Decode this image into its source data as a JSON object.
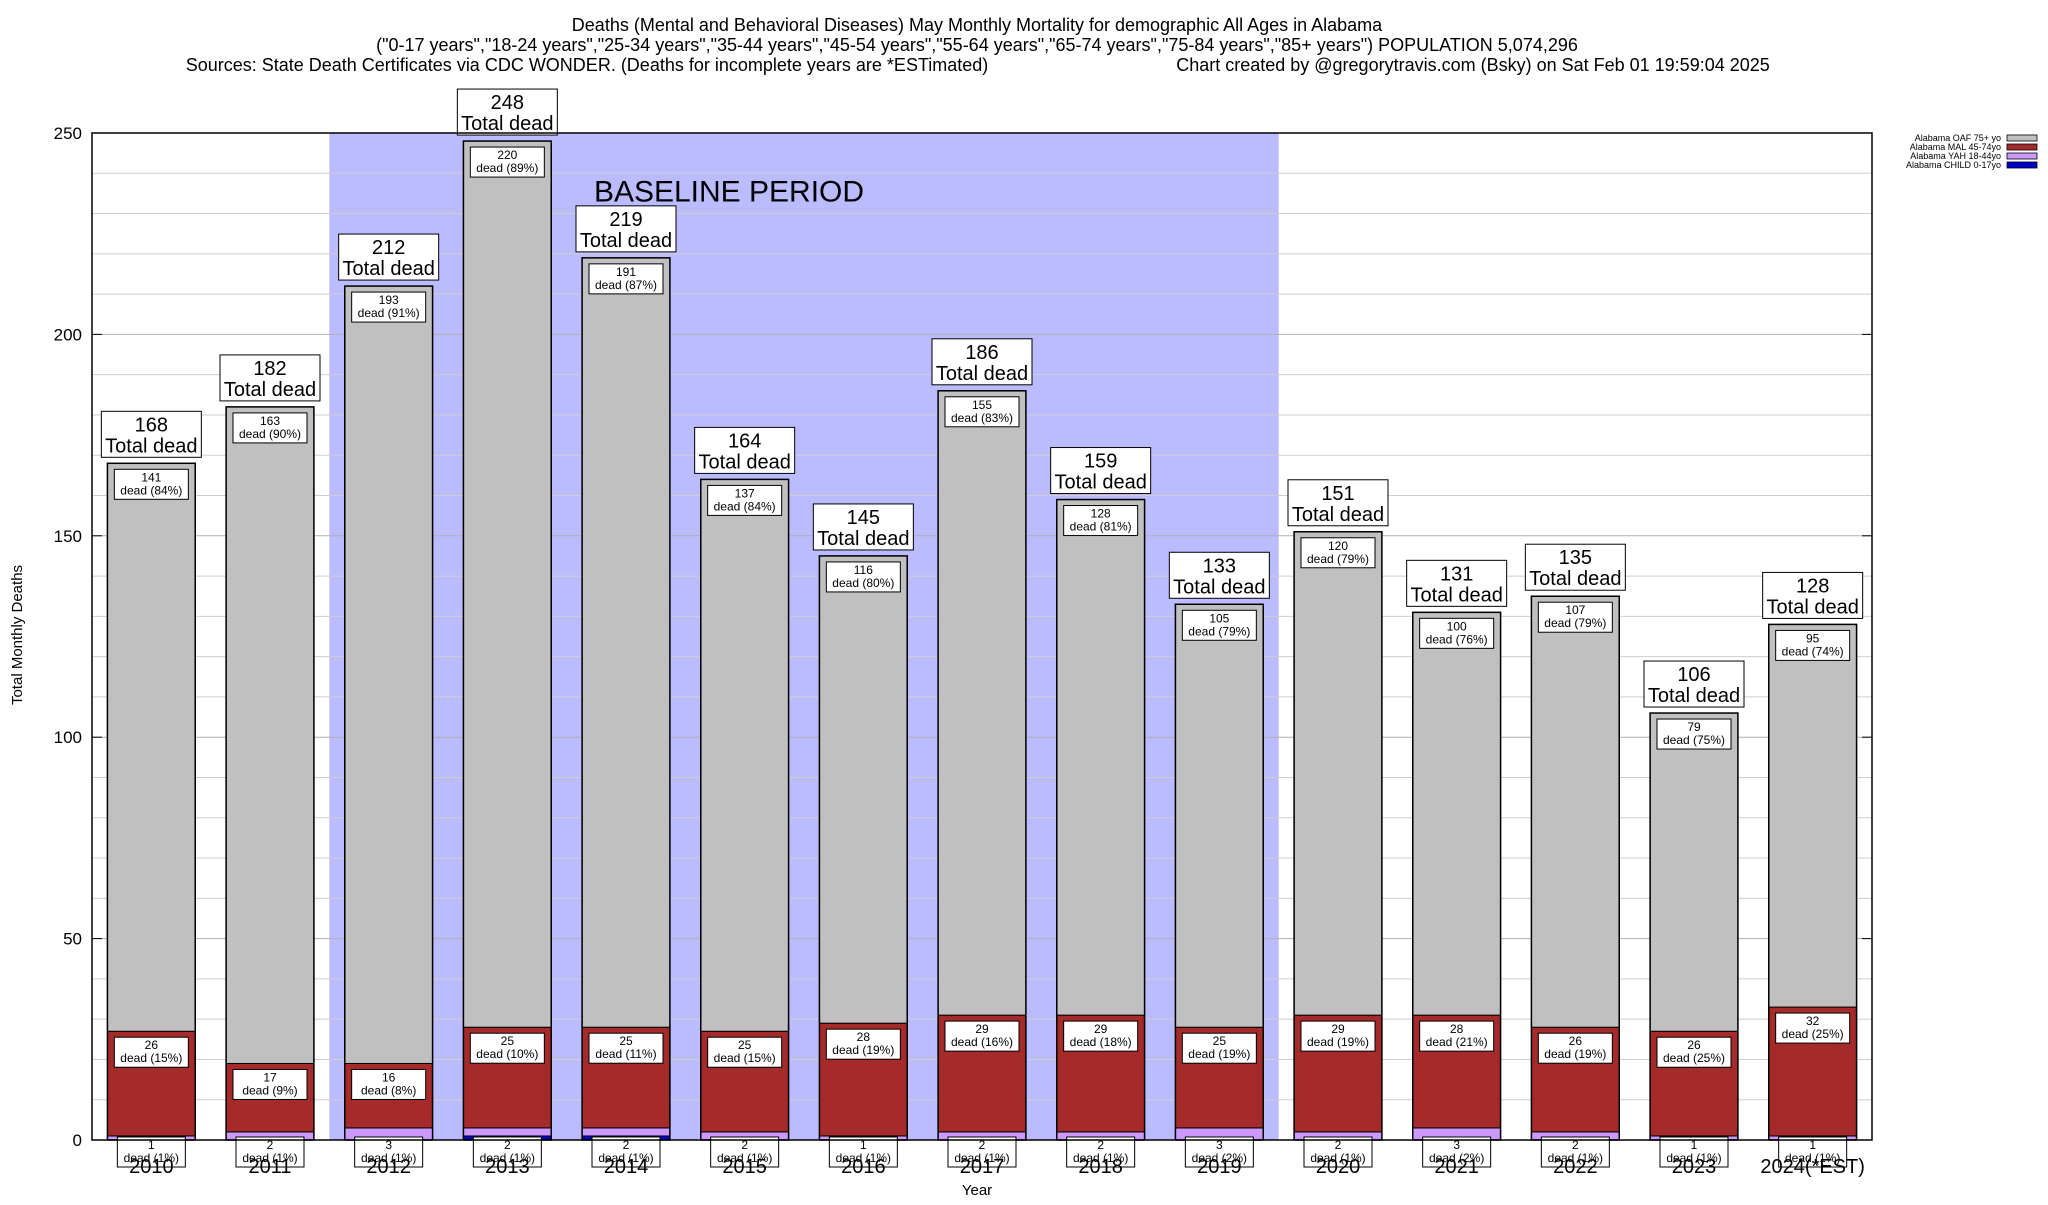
{
  "chart_data": {
    "type": "bar",
    "stacked": true,
    "title_lines": [
      "Deaths (Mental and Behavioral Diseases) May Monthly Mortality for demographic All Ages in Alabama",
      "(\"0-17 years\",\"18-24 years\",\"25-34 years\",\"35-44 years\",\"45-54 years\",\"55-64 years\",\"65-74 years\",\"75-84 years\",\"85+ years\") POPULATION 5,074,296"
    ],
    "sources": "Sources: State Death Certificates via CDC WONDER. (Deaths for incomplete years are *ESTimated)",
    "credit": "Chart created by @gregorytravis.com (Bsky) on Sat Feb 01 19:59:04 2025",
    "xlabel": "Year",
    "ylabel": "Total Monthly Deaths",
    "ylim": [
      0,
      250
    ],
    "yticks": [
      0,
      50,
      100,
      150,
      200,
      250
    ],
    "categories": [
      "2010",
      "2011",
      "2012",
      "2013",
      "2014",
      "2015",
      "2016",
      "2017",
      "2018",
      "2019",
      "2020",
      "2021",
      "2022",
      "2023",
      "2024(*EST)"
    ],
    "baseline": {
      "label": "BASELINE PERIOD",
      "from": "2012",
      "to": "2019",
      "color": "#bbbbff"
    },
    "total_suffix": "Total dead",
    "totals": [
      168,
      182,
      212,
      248,
      219,
      164,
      145,
      186,
      159,
      133,
      151,
      131,
      135,
      106,
      128
    ],
    "series": [
      {
        "name": "Alabama CHILD 0-17yo",
        "color": "#0000cc",
        "values": [
          0,
          0,
          0,
          1,
          1,
          0,
          0,
          0,
          0,
          0,
          0,
          0,
          0,
          0,
          0
        ]
      },
      {
        "name": "Alabama YAH 18-44yo",
        "color": "#cc99ff",
        "values": [
          1,
          2,
          3,
          2,
          2,
          2,
          1,
          2,
          2,
          3,
          2,
          3,
          2,
          1,
          1
        ],
        "labels": [
          "1",
          "2",
          "3",
          "2",
          "2",
          "2",
          "1",
          "2",
          "2",
          "3",
          "2",
          "3",
          "2",
          "1",
          "1"
        ],
        "pcts": [
          "dead (1%)",
          "dead (1%)",
          "dead (1%)",
          "dead (1%)",
          "dead (1%)",
          "dead (1%)",
          "dead (1%)",
          "dead (1%)",
          "dead (1%)",
          "dead (2%)",
          "dead (1%)",
          "dead (2%)",
          "dead (1%)",
          "dead (1%)",
          "dead (1%)"
        ]
      },
      {
        "name": "Alabama MAL 45-74yo",
        "color": "#a52a2a",
        "values": [
          26,
          17,
          16,
          25,
          25,
          25,
          28,
          29,
          29,
          25,
          29,
          28,
          26,
          26,
          32
        ],
        "pcts": [
          "dead (15%)",
          "dead (9%)",
          "dead (8%)",
          "dead (10%)",
          "dead (11%)",
          "dead (15%)",
          "dead (19%)",
          "dead (16%)",
          "dead (18%)",
          "dead (19%)",
          "dead (19%)",
          "dead (21%)",
          "dead (19%)",
          "dead (25%)",
          "dead (25%)"
        ]
      },
      {
        "name": "Alabama OAF 75+ yo",
        "color": "#c0c0c0",
        "values": [
          141,
          163,
          193,
          220,
          191,
          137,
          116,
          155,
          128,
          105,
          120,
          100,
          107,
          79,
          95
        ],
        "pcts": [
          "dead (84%)",
          "dead (90%)",
          "dead (91%)",
          "dead (89%)",
          "dead (87%)",
          "dead (84%)",
          "dead (80%)",
          "dead (83%)",
          "dead (81%)",
          "dead (79%)",
          "dead (79%)",
          "dead (76%)",
          "dead (79%)",
          "dead (75%)",
          "dead (74%)"
        ]
      }
    ],
    "legend": [
      {
        "name": "Alabama OAF 75+ yo",
        "color": "#c0c0c0"
      },
      {
        "name": "Alabama MAL 45-74yo",
        "color": "#a52a2a"
      },
      {
        "name": "Alabama YAH 18-44yo",
        "color": "#cc99ff"
      },
      {
        "name": "Alabama CHILD 0-17yo",
        "color": "#0000cc"
      }
    ],
    "legend_position": "top-right",
    "grid": true
  }
}
